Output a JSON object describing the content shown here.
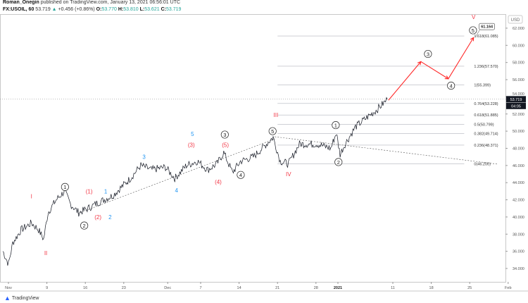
{
  "header": {
    "author": "Roman_Onegin",
    "published": "published on TradingView.com, January 13, 2021 06:56:01 UTC",
    "symbol": "FX:USOIL, 60",
    "last": "53.719",
    "change": "+0.456 (+0.86%)",
    "o_label": "O:",
    "o": "53.770",
    "h_label": "H:",
    "h": "53.810",
    "l_label": "L:",
    "l": "53.621",
    "c_label": "C:",
    "c": "53.719"
  },
  "footer": {
    "brand": "TradingView"
  },
  "colors": {
    "price": "#131722",
    "wave_red": "#f23645",
    "wave_blue": "#2196f3",
    "fib": "#9598a1",
    "projection": "#ff2a2a"
  },
  "chart_data": {
    "type": "line",
    "title": "FX:USOIL, 60",
    "currency": "USD",
    "ylim": [
      33.2,
      63.8
    ],
    "yticks": [
      "62.000",
      "60.000",
      "58.000",
      "56.000",
      "54.000",
      "52.000",
      "50.000",
      "48.000",
      "46.000",
      "44.000",
      "42.000",
      "40.000",
      "38.000",
      "36.000",
      "34.000"
    ],
    "xticks": [
      {
        "label": "Nov",
        "day": 0
      },
      {
        "label": "9",
        "day": 7
      },
      {
        "label": "16",
        "day": 14
      },
      {
        "label": "23",
        "day": 21
      },
      {
        "label": "Dec",
        "day": 29
      },
      {
        "label": "7",
        "day": 35
      },
      {
        "label": "14",
        "day": 42
      },
      {
        "label": "21",
        "day": 49
      },
      {
        "label": "28",
        "day": 56
      },
      {
        "label": "2021",
        "day": 60
      },
      {
        "label": "11",
        "day": 70
      },
      {
        "label": "18",
        "day": 77
      },
      {
        "label": "25",
        "day": 84
      },
      {
        "label": "Feb",
        "day": 91
      }
    ],
    "price_keypoints": [
      [
        -1,
        36
      ],
      [
        0,
        34.5
      ],
      [
        0.8,
        37
      ],
      [
        2.3,
        38.5
      ],
      [
        4.2,
        39.3
      ],
      [
        5.5,
        38.5
      ],
      [
        6.4,
        37.4
      ],
      [
        7.2,
        40.5
      ],
      [
        8.7,
        42
      ],
      [
        10.2,
        43
      ],
      [
        11.3,
        41.5
      ],
      [
        12.8,
        40.5
      ],
      [
        14.5,
        41
      ],
      [
        16.4,
        41.7
      ],
      [
        19,
        42.5
      ],
      [
        22.2,
        44.5
      ],
      [
        24.1,
        46
      ],
      [
        26,
        45.5
      ],
      [
        28.6,
        45.8
      ],
      [
        30.3,
        44.5
      ],
      [
        32.4,
        46
      ],
      [
        34.4,
        46.5
      ],
      [
        36.3,
        45.5
      ],
      [
        38,
        46.2
      ],
      [
        39.2,
        47.5
      ],
      [
        40.8,
        45.2
      ],
      [
        42.3,
        46.5
      ],
      [
        44.6,
        47
      ],
      [
        47,
        48.5
      ],
      [
        48.2,
        49.3
      ],
      [
        49.5,
        46.5
      ],
      [
        51,
        46.2
      ],
      [
        53,
        48.5
      ],
      [
        56.2,
        48.5
      ],
      [
        58.7,
        48
      ],
      [
        59.7,
        49.8
      ],
      [
        60.4,
        47.3
      ],
      [
        61.3,
        48.5
      ],
      [
        63.2,
        50.5
      ],
      [
        65.1,
        51.5
      ],
      [
        67.1,
        52.5
      ],
      [
        69,
        53.7
      ]
    ],
    "current_price": {
      "value": 53.719,
      "label": "53.719",
      "countdown": "04:05"
    },
    "fib_levels": [
      {
        "label": "0(46.200)",
        "value": 46.2
      },
      {
        "label": "0.236(48.371)",
        "value": 48.371
      },
      {
        "label": "0.382(49.714)",
        "value": 49.714
      },
      {
        "label": "0.5(50.799)",
        "value": 50.799
      },
      {
        "label": "0.618(51.885)",
        "value": 51.885
      },
      {
        "label": "0.764(53.228)",
        "value": 53.228
      },
      {
        "label": "1(55.399)",
        "value": 55.399
      },
      {
        "label": "1.236(57.570)",
        "value": 57.57
      },
      {
        "label": "1.618(61.085)",
        "value": 61.085
      }
    ],
    "fib_range_days": [
      49,
      83
    ],
    "target_label": {
      "text": "61.164",
      "value": 61.164
    },
    "projection": [
      [
        69.2,
        53.6
      ],
      [
        75.1,
        58.1
      ],
      [
        80.1,
        56.1
      ],
      [
        84.7,
        60.9
      ]
    ],
    "trendlines": [
      [
        [
          12.6,
          40.4
        ],
        [
          48.5,
          49.1
        ]
      ],
      [
        [
          48.5,
          49.35
        ],
        [
          89.2,
          46.15
        ]
      ]
    ],
    "waves": [
      {
        "t": "I",
        "style": "red",
        "day": 4.2,
        "p": 42.4
      },
      {
        "t": "II",
        "style": "red",
        "day": 6.8,
        "p": 35.8
      },
      {
        "t": "1",
        "style": "circle",
        "day": 10.3,
        "p": 43.5
      },
      {
        "t": "2",
        "style": "circle",
        "day": 13.8,
        "p": 39.0
      },
      {
        "t": "(1)",
        "style": "red",
        "day": 14.7,
        "p": 43.0
      },
      {
        "t": "(2)",
        "style": "red",
        "day": 16.3,
        "p": 40.0
      },
      {
        "t": "1",
        "style": "blue",
        "day": 17.7,
        "p": 43.0
      },
      {
        "t": "2",
        "style": "blue",
        "day": 18.5,
        "p": 40.0
      },
      {
        "t": "3",
        "style": "blue",
        "day": 24.7,
        "p": 47.0
      },
      {
        "t": "4",
        "style": "blue",
        "day": 30.6,
        "p": 43.1
      },
      {
        "t": "(3)",
        "style": "red",
        "day": 33.3,
        "p": 48.4
      },
      {
        "t": "5",
        "style": "blue",
        "day": 33.5,
        "p": 49.7
      },
      {
        "t": "3",
        "style": "circle",
        "day": 39.4,
        "p": 49.6
      },
      {
        "t": "(5)",
        "style": "red",
        "day": 39.5,
        "p": 48.4
      },
      {
        "t": "(4)",
        "style": "red",
        "day": 38.2,
        "p": 44.1
      },
      {
        "t": "4",
        "style": "circle",
        "day": 42.3,
        "p": 44.9
      },
      {
        "t": "5",
        "style": "circle",
        "day": 48.1,
        "p": 50.0
      },
      {
        "t": "III",
        "style": "red",
        "day": 48.7,
        "p": 51.9
      },
      {
        "t": "IV",
        "style": "red",
        "day": 51.0,
        "p": 45.0
      },
      {
        "t": "1",
        "style": "circle",
        "day": 59.6,
        "p": 50.7
      },
      {
        "t": "2",
        "style": "circle",
        "day": 60.1,
        "p": 46.4
      },
      {
        "t": "3",
        "style": "circle",
        "day": 76.4,
        "p": 59.0
      },
      {
        "t": "4",
        "style": "circle",
        "day": 80.6,
        "p": 55.3
      },
      {
        "t": "5",
        "style": "circle",
        "day": 84.6,
        "p": 61.75
      },
      {
        "t": "V",
        "style": "red",
        "day": 84.7,
        "p": 63.3
      }
    ]
  }
}
